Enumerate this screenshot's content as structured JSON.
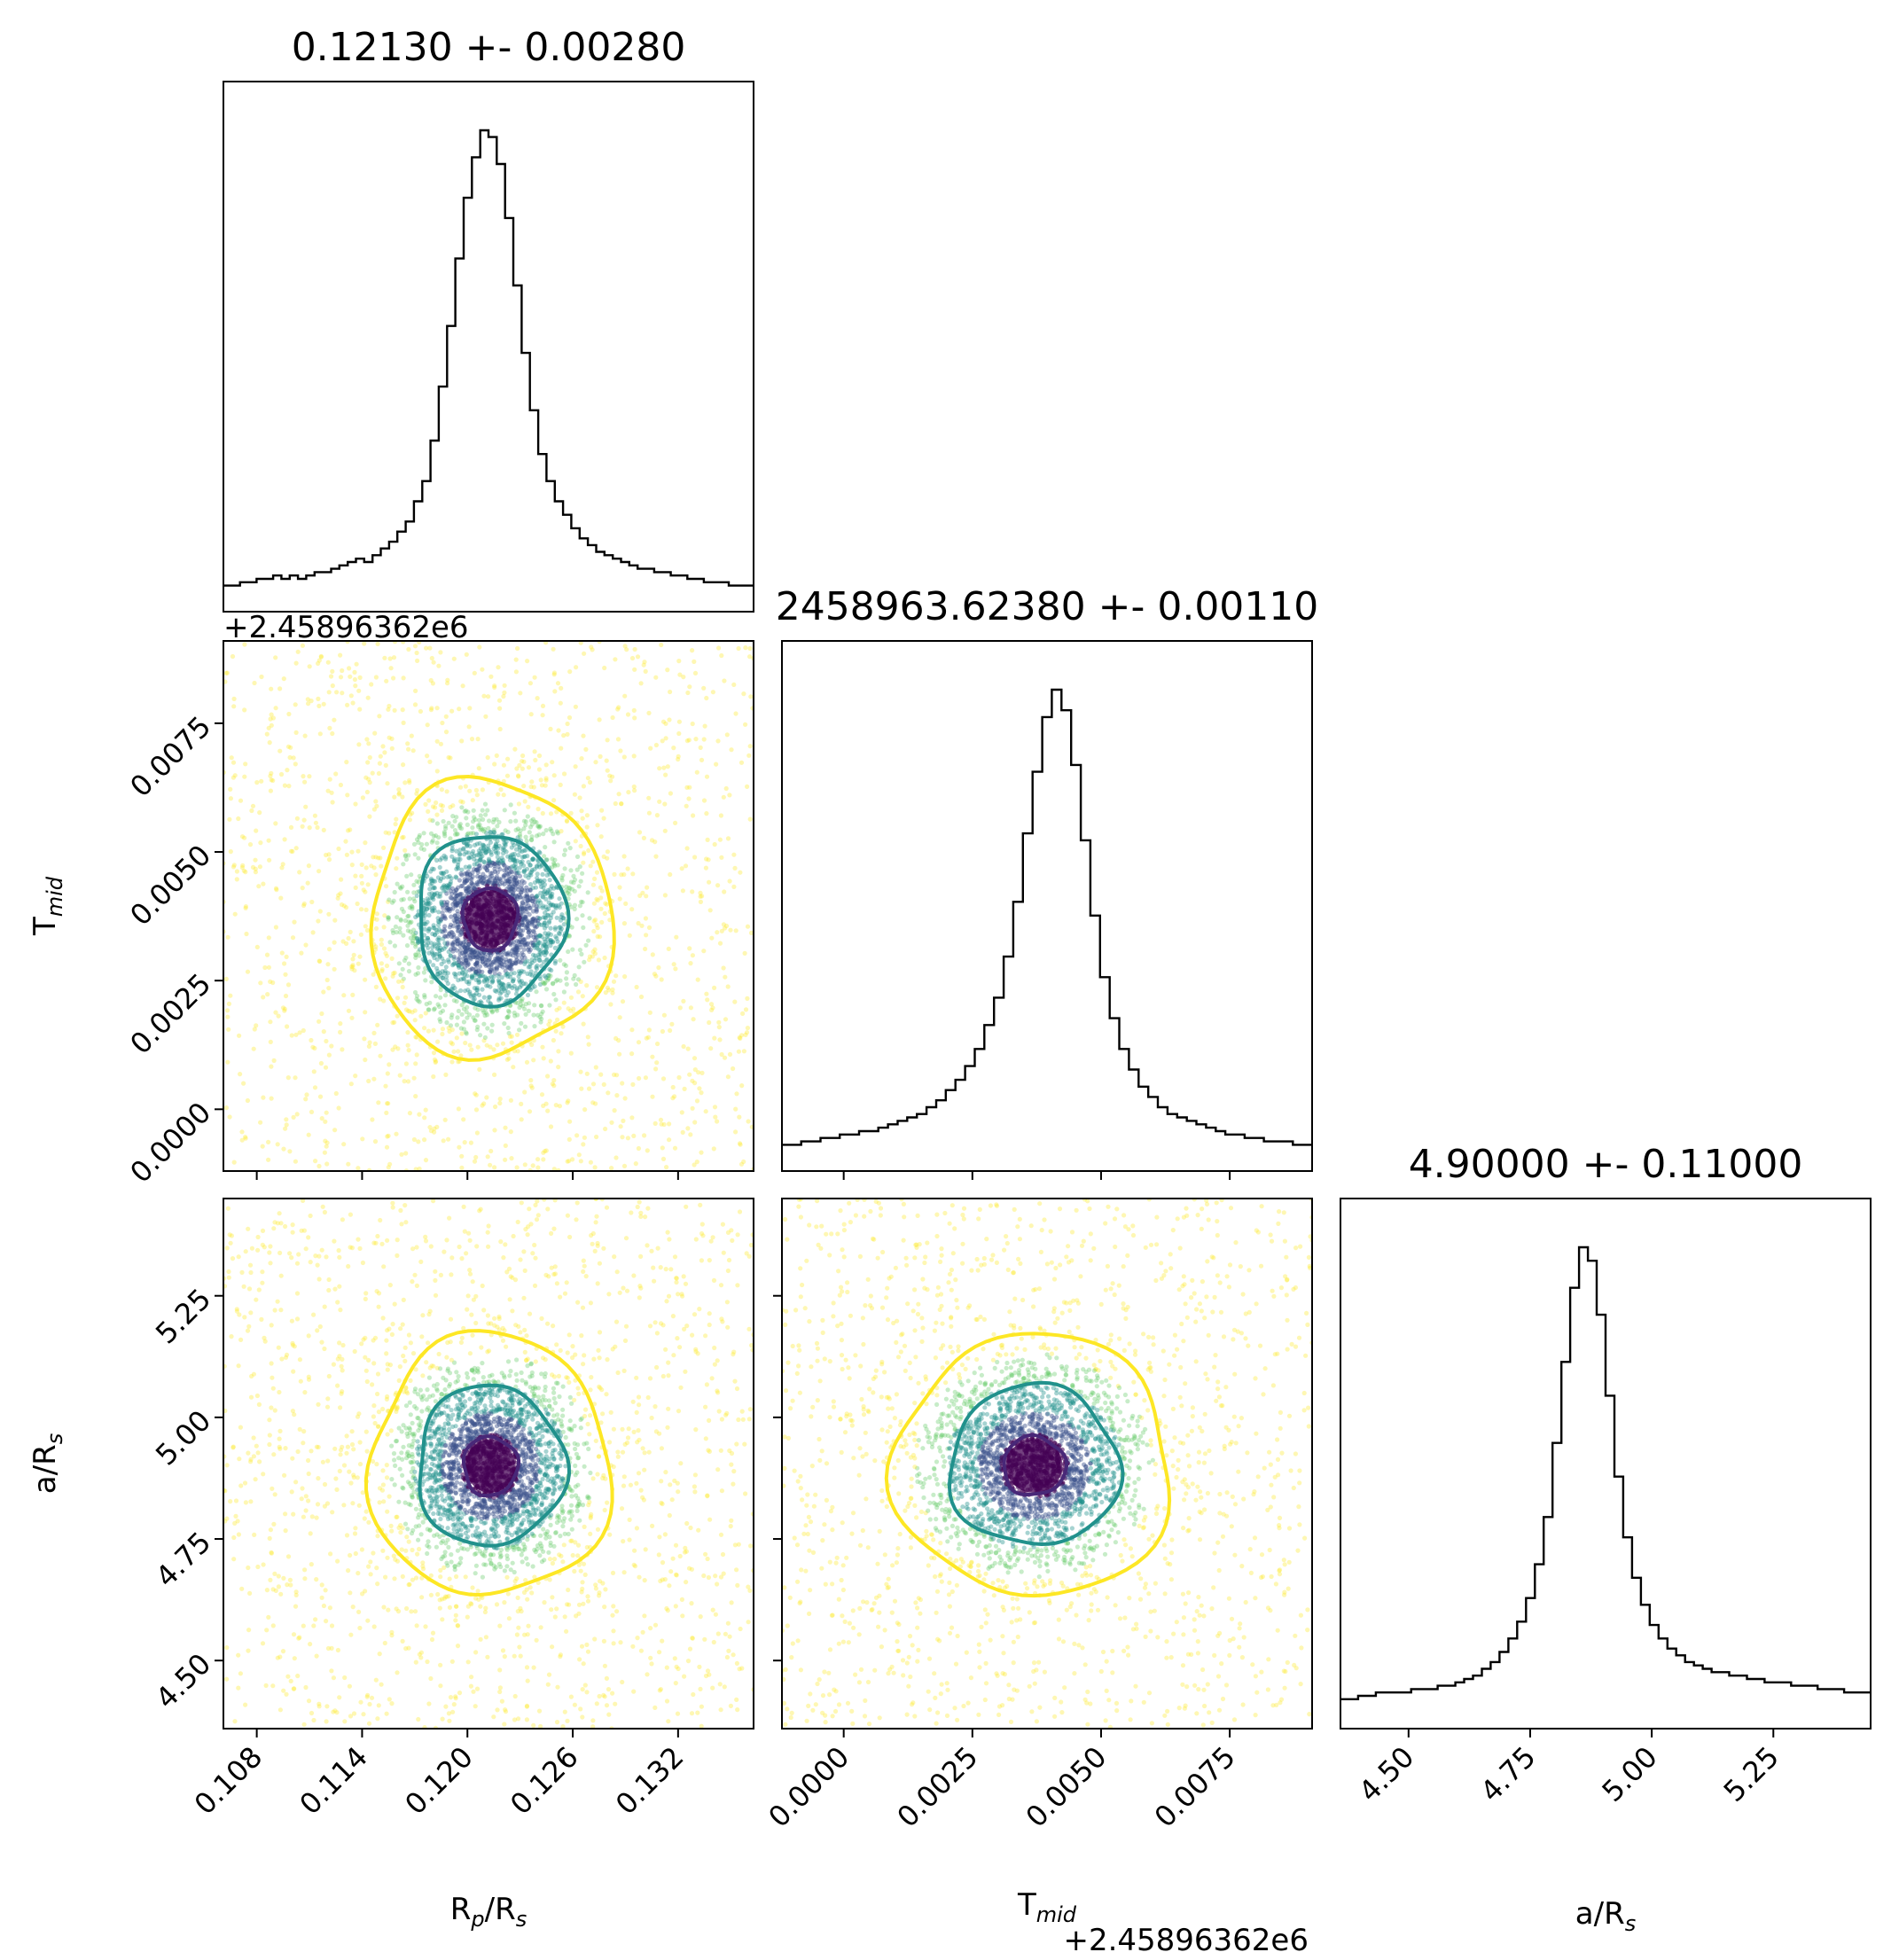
{
  "chart_data": {
    "type": "corner",
    "parameters": [
      {
        "key": "rp",
        "label": "R",
        "sub": "p",
        "label2": "/R",
        "sub2": "s",
        "range": [
          0.1061,
          0.1363
        ],
        "ticks": [
          0.108,
          0.114,
          0.12,
          0.126,
          0.132
        ],
        "tick_labels": [
          "0.108",
          "0.114",
          "0.120",
          "0.126",
          "0.132"
        ]
      },
      {
        "key": "tmid",
        "label": "T",
        "sub": "mid",
        "label2": "",
        "sub2": "",
        "range": [
          -0.0012,
          0.0091
        ],
        "ticks": [
          0.0,
          0.0025,
          0.005,
          0.0075
        ],
        "tick_labels": [
          "0.0000",
          "0.0025",
          "0.0050",
          "0.0075"
        ],
        "offset_text": "+2.45896362e6"
      },
      {
        "key": "ars",
        "label": "a/R",
        "sub": "s",
        "label2": "",
        "sub2": "",
        "range": [
          4.36,
          5.45
        ],
        "ticks": [
          4.5,
          4.75,
          5.0,
          5.25
        ],
        "tick_labels": [
          "4.50",
          "4.75",
          "5.00",
          "5.25"
        ]
      }
    ],
    "titles": [
      "0.12130 +- 0.00280",
      "2458963.62380 +- 0.00110",
      "4.90000 +- 0.11000"
    ],
    "marginals": [
      {
        "param": "rp",
        "counts": [
          3,
          3,
          4,
          4,
          5,
          5,
          6,
          5,
          6,
          5,
          6,
          7,
          7,
          8,
          9,
          10,
          11,
          10,
          12,
          14,
          16,
          19,
          22,
          28,
          34,
          46,
          62,
          80,
          100,
          118,
          130,
          138,
          136,
          128,
          112,
          92,
          72,
          55,
          42,
          34,
          28,
          24,
          20,
          17,
          15,
          13,
          12,
          11,
          10,
          9,
          8,
          8,
          7,
          7,
          6,
          6,
          5,
          5,
          4,
          4,
          4,
          3,
          3,
          3
        ]
      },
      {
        "param": "tmid",
        "counts": [
          3,
          3,
          4,
          4,
          5,
          5,
          6,
          6,
          7,
          7,
          8,
          9,
          10,
          11,
          12,
          14,
          16,
          19,
          22,
          26,
          31,
          38,
          46,
          58,
          74,
          94,
          112,
          128,
          136,
          130,
          114,
          92,
          70,
          52,
          40,
          31,
          25,
          20,
          17,
          14,
          12,
          11,
          10,
          9,
          8,
          7,
          6,
          6,
          5,
          5,
          4,
          4,
          4,
          3,
          3
        ]
      },
      {
        "param": "ars",
        "counts": [
          4,
          4,
          5,
          5,
          6,
          6,
          6,
          6,
          7,
          7,
          7,
          8,
          8,
          9,
          10,
          11,
          13,
          15,
          18,
          22,
          27,
          34,
          44,
          58,
          80,
          104,
          126,
          138,
          134,
          118,
          94,
          70,
          52,
          40,
          32,
          26,
          22,
          19,
          17,
          15,
          14,
          13,
          12,
          12,
          11,
          11,
          10,
          10,
          9,
          9,
          9,
          8,
          8,
          8,
          7,
          7,
          7,
          6,
          6,
          6
        ]
      }
    ],
    "joint_pairs": [
      {
        "x": "rp",
        "y": "tmid",
        "center": [
          0.1213,
          0.0037
        ],
        "sigma": [
          0.0028,
          0.0011
        ]
      },
      {
        "x": "rp",
        "y": "ars",
        "center": [
          0.1213,
          4.9
        ],
        "sigma": [
          0.0028,
          0.11
        ]
      },
      {
        "x": "tmid",
        "y": "ars",
        "center": [
          0.0037,
          4.9
        ],
        "sigma": [
          0.0011,
          0.11
        ]
      }
    ],
    "contour_levels_sigma": [
      0.55,
      1.5,
      2.45
    ],
    "contour_colors": [
      "#482878",
      "#21918c",
      "#fde725"
    ],
    "point_colors": [
      "#440154",
      "#3b528b",
      "#21918c",
      "#5ec962",
      "#fde725"
    ],
    "grid": false
  }
}
